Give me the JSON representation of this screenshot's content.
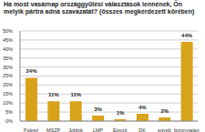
{
  "chart_data": {
    "type": "bar",
    "title": "Ha most vasárnap országgyűlési választások lennének, Ön melyik pártra adná szavazatát? (összes megkérdezett körében)",
    "categories": [
      "Fidesz",
      "MSZP",
      "Jobbik",
      "LMP",
      "Együtt",
      "DK",
      "egyéb",
      "bizonytalan"
    ],
    "values": [
      24,
      11,
      11,
      3,
      1,
      4,
      2,
      44
    ],
    "value_labels": [
      "24%",
      "11%",
      "11%",
      "3%",
      "1%",
      "4%",
      "2%",
      "44%"
    ],
    "data_labels": true,
    "color": "#d9a21b",
    "ylim": [
      0,
      50
    ],
    "yticks": [
      {
        "value": 0,
        "label": "0%"
      },
      {
        "value": 5,
        "label": "5%"
      },
      {
        "value": 10,
        "label": "10%"
      },
      {
        "value": 15,
        "label": "15%"
      },
      {
        "value": 20,
        "label": "20%"
      },
      {
        "value": 25,
        "label": "25%"
      },
      {
        "value": 30,
        "label": "30%"
      },
      {
        "value": 35,
        "label": "35%"
      },
      {
        "value": 40,
        "label": "40%"
      },
      {
        "value": 45,
        "label": "45%"
      },
      {
        "value": 50,
        "label": "50%"
      }
    ],
    "grid": true
  }
}
